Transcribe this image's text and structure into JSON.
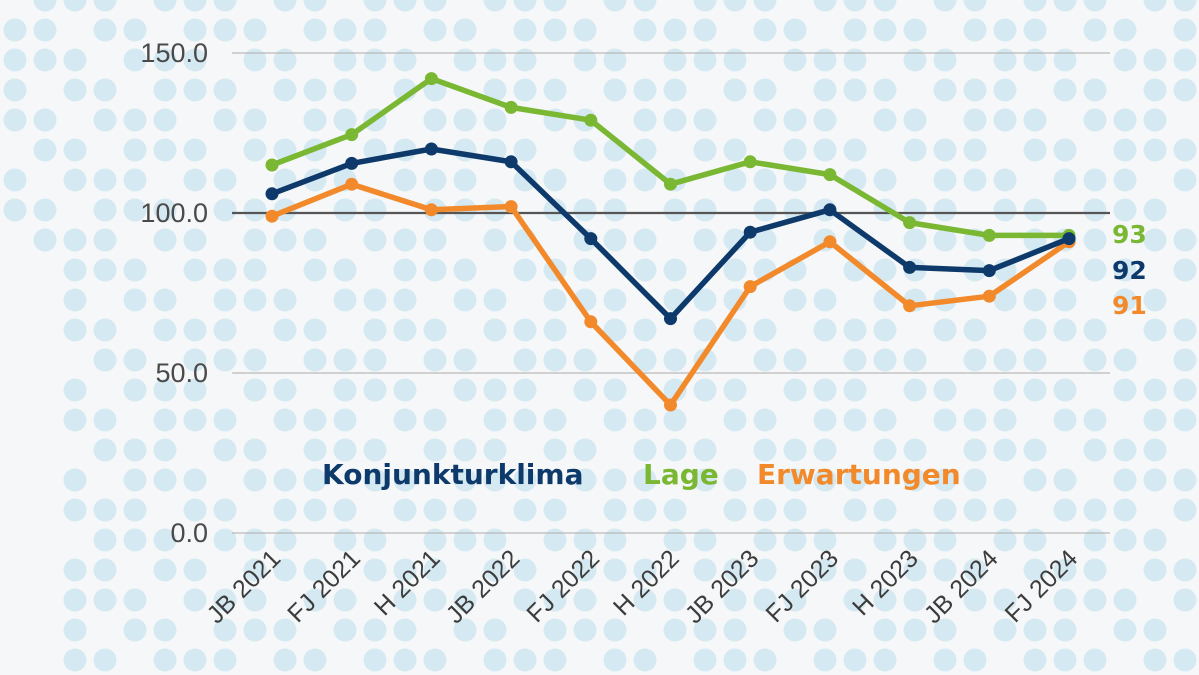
{
  "chart_data": {
    "type": "line",
    "title": "",
    "xlabel": "",
    "ylabel": "",
    "ylim": [
      0,
      150
    ],
    "yticks": [
      "0.0",
      "50.0",
      "100.0",
      "150.0"
    ],
    "reference_line": 100,
    "categories": [
      "JB 2021",
      "FJ 2021",
      "H 2021",
      "JB 2022",
      "FJ 2022",
      "H 2022",
      "JB 2023",
      "FJ 2023",
      "H 2023",
      "JB 2024",
      "FJ 2024"
    ],
    "series": [
      {
        "name": "Konjunkturklima",
        "color": "#0d3a6b",
        "values": [
          106,
          115.5,
          120,
          116,
          92,
          67,
          94,
          101,
          83,
          82,
          92
        ],
        "end_label": "92"
      },
      {
        "name": "Lage",
        "color": "#7ab733",
        "values": [
          115,
          124.5,
          142,
          133,
          129,
          109,
          116,
          112,
          97,
          93,
          93
        ],
        "end_label": "93"
      },
      {
        "name": "Erwartungen",
        "color": "#f28a2c",
        "values": [
          99,
          109,
          101,
          102,
          66,
          40,
          77,
          91,
          71,
          74,
          91
        ],
        "end_label": "91"
      }
    ]
  }
}
